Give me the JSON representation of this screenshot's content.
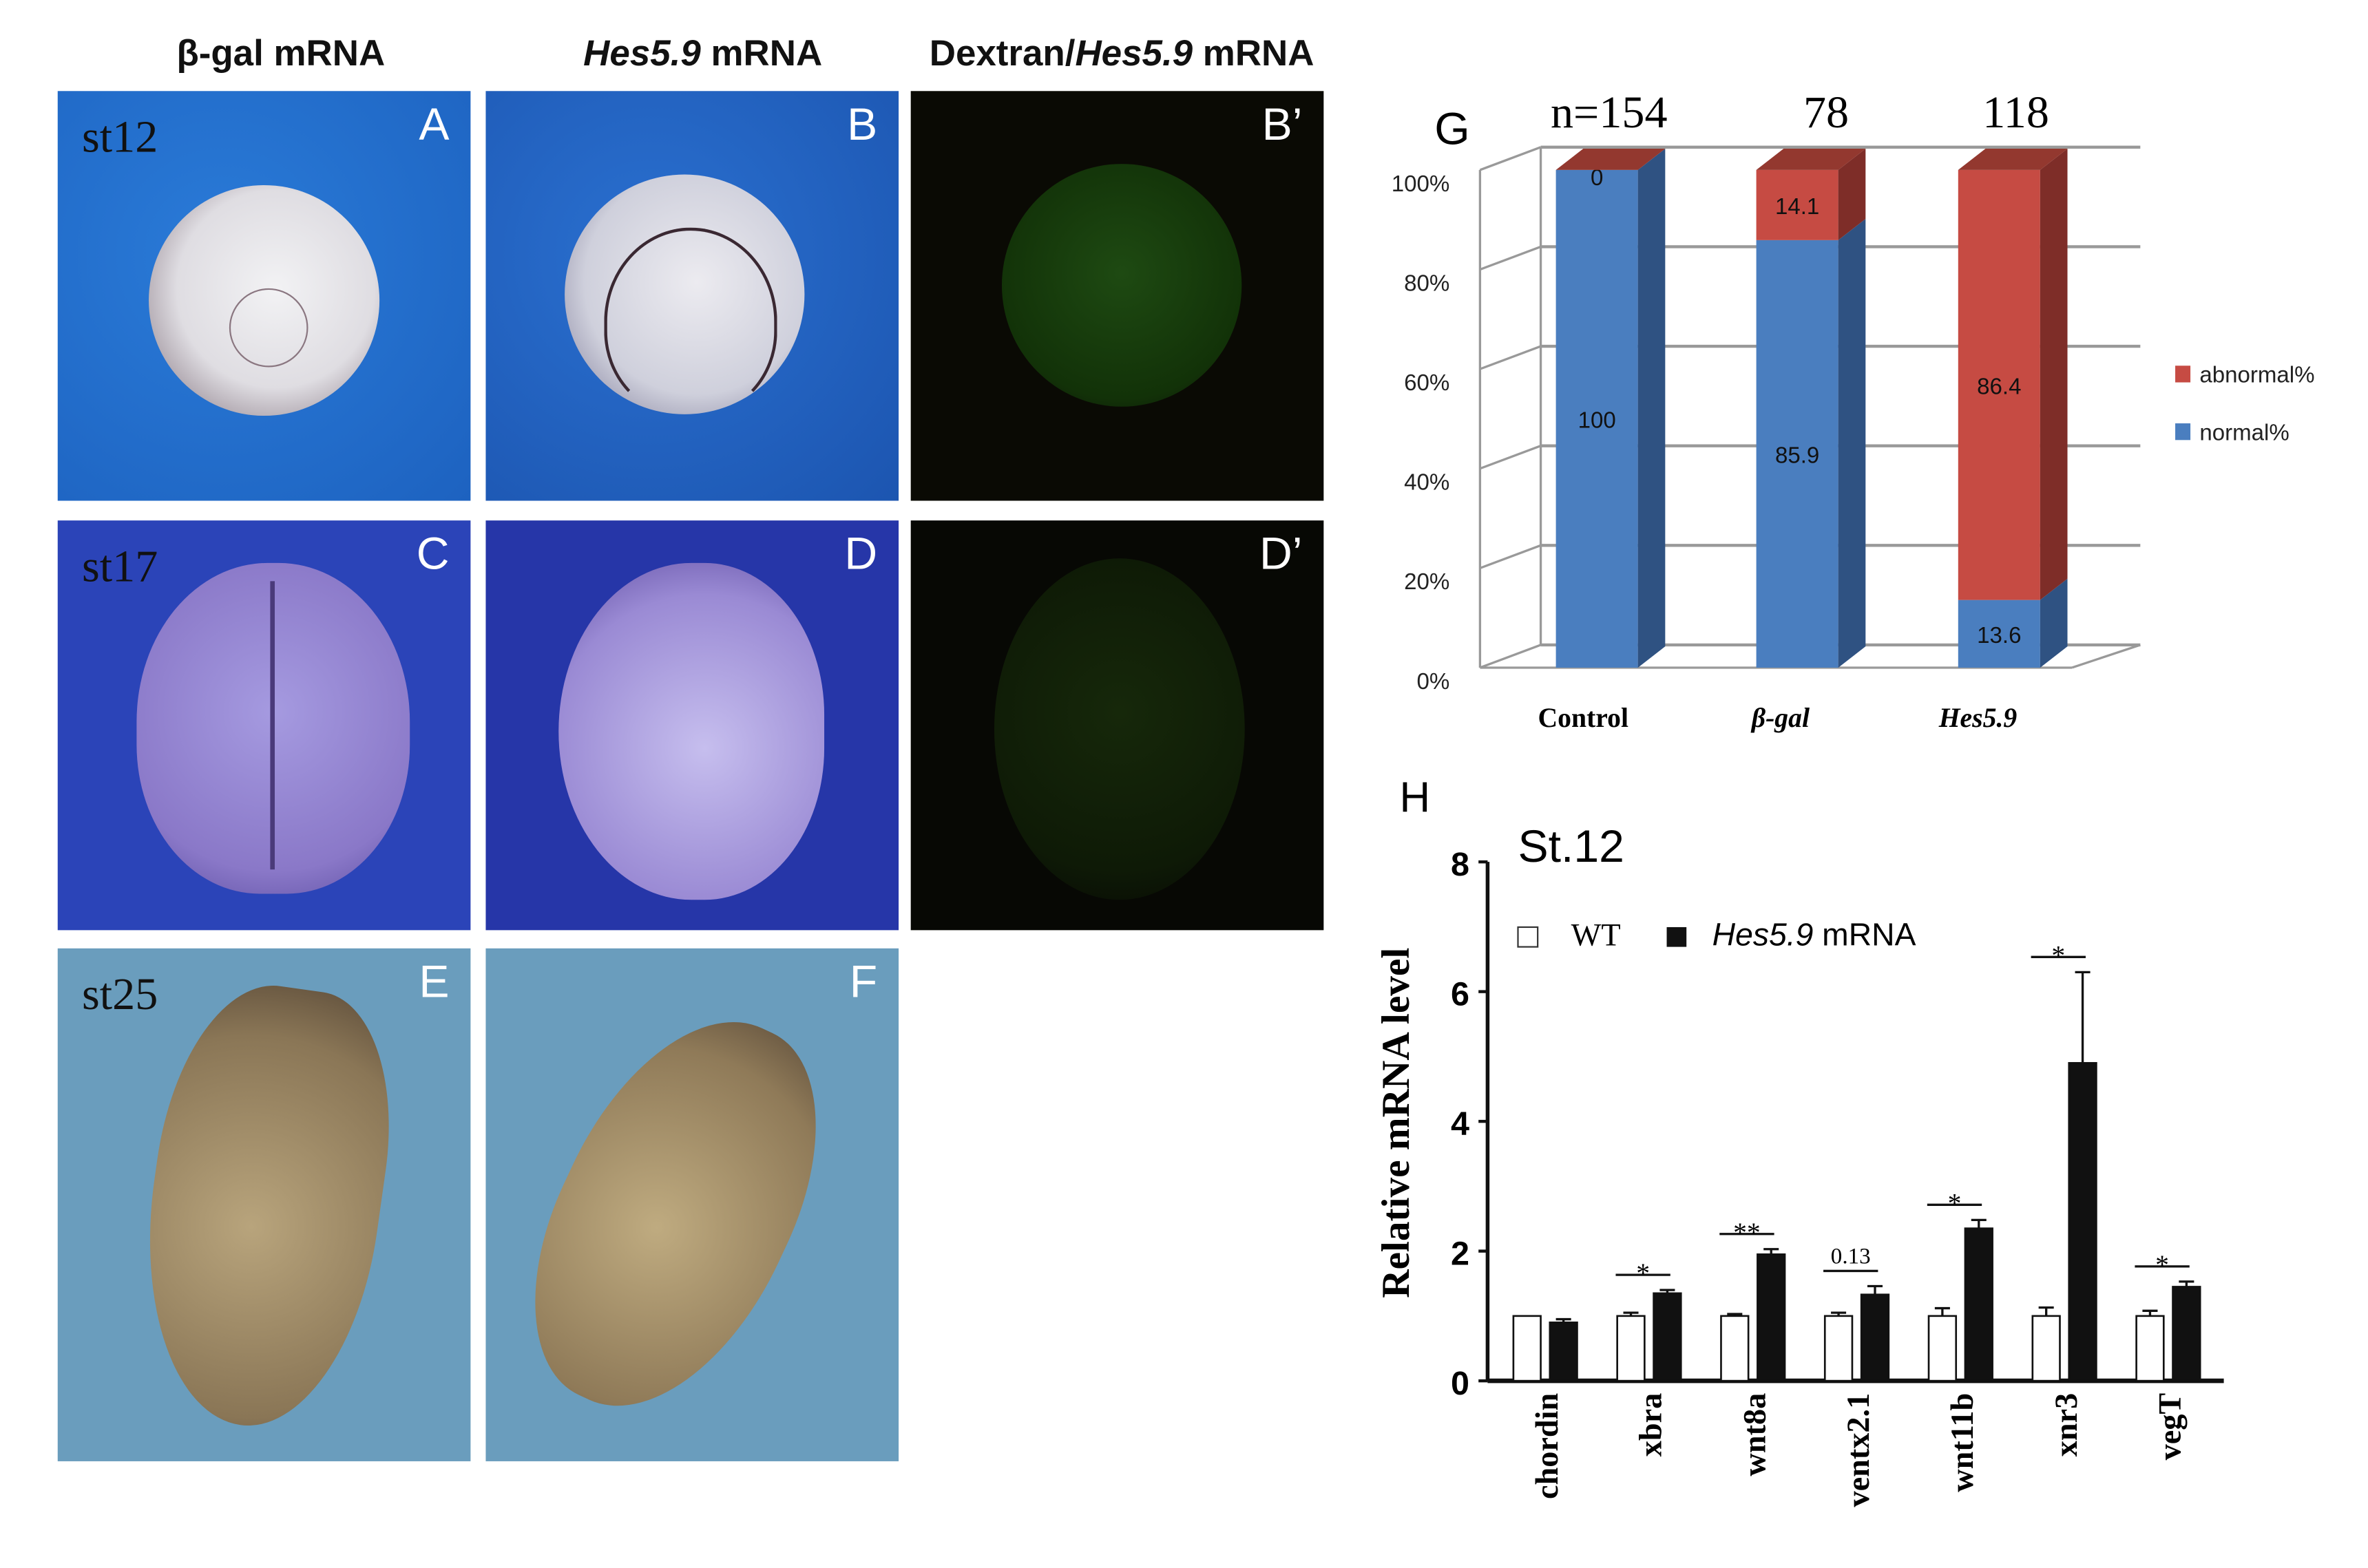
{
  "column_headers": [
    {
      "main": "β-gal mRNA",
      "italic_part": "",
      "suffix": ""
    },
    {
      "main": "",
      "italic_part": "Hes5.9",
      "suffix": " mRNA"
    },
    {
      "main": "Dextran/",
      "italic_part": "Hes5.9",
      "suffix": " mRNA"
    }
  ],
  "panels": {
    "A": {
      "letter": "A",
      "stage": "st12"
    },
    "B": {
      "letter": "B"
    },
    "Bp": {
      "letter": "B’"
    },
    "C": {
      "letter": "C",
      "stage": "st17"
    },
    "D": {
      "letter": "D"
    },
    "Dp": {
      "letter": "D’"
    },
    "E": {
      "letter": "E",
      "stage": "st25"
    },
    "F": {
      "letter": "F"
    }
  },
  "colors": {
    "normal": "#4a7ebf",
    "abnormal": "#c64b43",
    "hes_bar": "#111111",
    "wt_bar": "#ffffff"
  },
  "chart_data": [
    {
      "panel_label": "G",
      "type": "bar",
      "stacked": true,
      "categories": [
        "Control",
        "β-gal",
        "Hes5.9"
      ],
      "n_labels": [
        "n=154",
        "78",
        "118"
      ],
      "series": [
        {
          "name": "normal%",
          "values": [
            100,
            85.9,
            13.6
          ],
          "value_labels": [
            "100",
            "85.9",
            "13.6"
          ]
        },
        {
          "name": "abnormal%",
          "values": [
            0,
            14.1,
            86.4
          ],
          "value_labels": [
            "0",
            "14.1",
            "86.4"
          ]
        }
      ],
      "yticks": [
        "0%",
        "20%",
        "40%",
        "60%",
        "80%",
        "100%"
      ],
      "ylim": [
        0,
        100
      ],
      "legend": "right",
      "grid": true
    },
    {
      "panel_label": "H",
      "type": "bar",
      "title": "St.12",
      "ylabel": "Relative mRNA level",
      "categories": [
        "chordin",
        "xbra",
        "wnt8a",
        "ventx2.1",
        "wnt11b",
        "xnr3",
        "vegT"
      ],
      "legend_items": [
        {
          "name": "WT"
        },
        {
          "name_italic": "Hes5.9",
          "name_suffix": " mRNA"
        }
      ],
      "series": [
        {
          "name": "WT",
          "values": [
            1,
            1,
            1,
            1,
            1,
            1,
            1
          ],
          "errors": [
            0,
            0.05,
            0.03,
            0.05,
            0.12,
            0.13,
            0.08
          ]
        },
        {
          "name": "Hes5.9 mRNA",
          "values": [
            0.9,
            1.35,
            1.95,
            1.33,
            2.35,
            4.9,
            1.45
          ],
          "errors": [
            0.05,
            0.05,
            0.08,
            0.13,
            0.13,
            1.4,
            0.08
          ]
        }
      ],
      "significance": [
        "",
        "*",
        "**",
        "0.13",
        "*",
        "*",
        "*"
      ],
      "yticks": [
        "0",
        "2",
        "4",
        "6",
        "8"
      ],
      "ylim": [
        0,
        8
      ],
      "legend": "top-left"
    }
  ]
}
